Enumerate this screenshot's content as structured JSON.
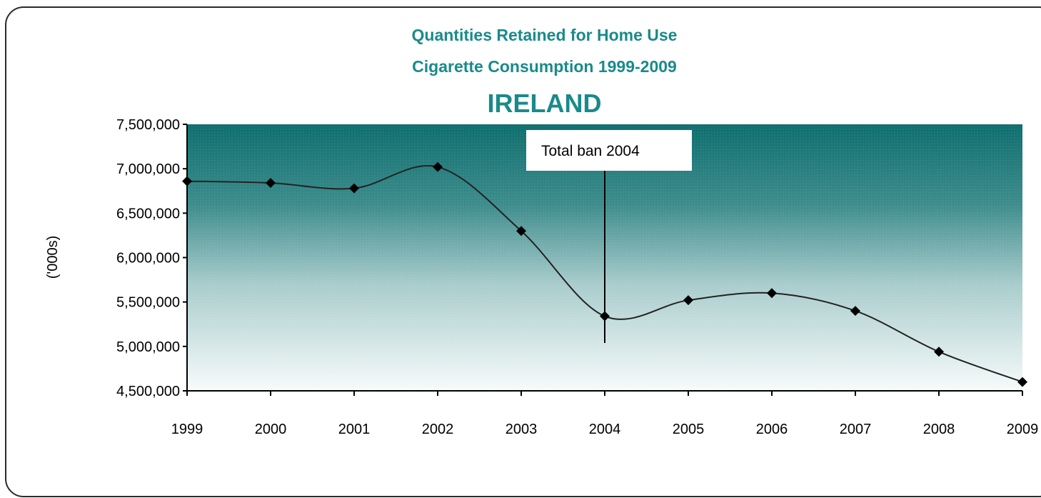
{
  "chart_data": {
    "type": "line",
    "title": [
      "Quantities Retained for Home Use",
      "Cigarette Consumption 1999-2009",
      "IRELAND"
    ],
    "xlabel": "",
    "ylabel": "('000s)",
    "categories": [
      "1999",
      "2000",
      "2001",
      "2002",
      "2003",
      "2004",
      "2005",
      "2006",
      "2007",
      "2008",
      "2009"
    ],
    "series": [
      {
        "values": [
          6860000,
          6840000,
          6780000,
          7020000,
          6300000,
          5340000,
          5520000,
          5600000,
          5400000,
          4940000,
          4600000
        ]
      }
    ],
    "ylim": [
      4500000,
      7500000
    ],
    "yticks": [
      "4,500,000",
      "5,000,000",
      "5,500,000",
      "6,000,000",
      "6,500,000",
      "7,000,000",
      "7,500,000"
    ],
    "ytick_values": [
      4500000,
      5000000,
      5500000,
      6000000,
      6500000,
      7000000,
      7500000
    ],
    "annotation": {
      "text": "Total ban 2004",
      "x": "2004"
    },
    "grid": false,
    "background": "teal-to-white gradient",
    "colors": {
      "title": "#1a8a8a",
      "bg_top": "#0f6e6e",
      "line": "#222222",
      "marker": "#000000"
    }
  }
}
